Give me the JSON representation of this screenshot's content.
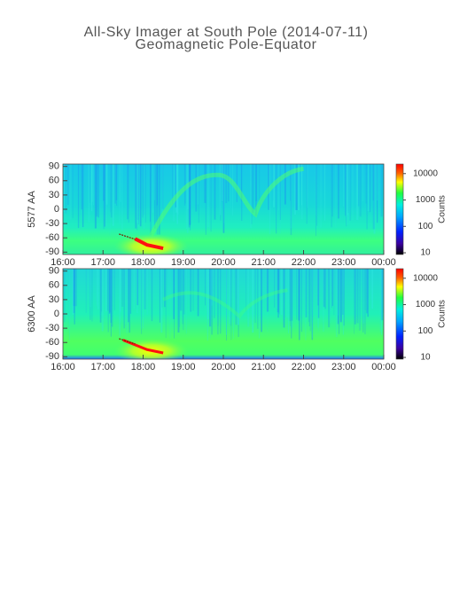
{
  "title": "All-Sky Imager at South Pole (2014-07-11)",
  "subtitle": "Geomagnetic Pole-Equator",
  "chart_data": [
    {
      "type": "keogram",
      "y_label": "5577 AA",
      "xlim": [
        16,
        24
      ],
      "xticks": [
        {
          "value": 16,
          "label": "16:00"
        },
        {
          "value": 17,
          "label": "17:00"
        },
        {
          "value": 18,
          "label": "18:00"
        },
        {
          "value": 19,
          "label": "19:00"
        },
        {
          "value": 20,
          "label": "20:00"
        },
        {
          "value": 21,
          "label": "21:00"
        },
        {
          "value": 22,
          "label": "22:00"
        },
        {
          "value": 23,
          "label": "23:00"
        },
        {
          "value": 24,
          "label": "00:00"
        }
      ],
      "ylim": [
        -95,
        95
      ],
      "yticks": [
        -90,
        -60,
        -30,
        0,
        30,
        60,
        90
      ],
      "colorbar_label": "Counts",
      "clim": [
        8.6,
        23000
      ],
      "log_color": true,
      "cticks": [
        10,
        100,
        1000,
        10000
      ]
    },
    {
      "type": "keogram",
      "y_label": "6300 AA",
      "xlim": [
        16,
        24
      ],
      "xticks": [
        {
          "value": 16,
          "label": "16:00"
        },
        {
          "value": 17,
          "label": "17:00"
        },
        {
          "value": 18,
          "label": "18:00"
        },
        {
          "value": 19,
          "label": "19:00"
        },
        {
          "value": 20,
          "label": "20:00"
        },
        {
          "value": 21,
          "label": "21:00"
        },
        {
          "value": 22,
          "label": "22:00"
        },
        {
          "value": 23,
          "label": "23:00"
        },
        {
          "value": 24,
          "label": "00:00"
        }
      ],
      "ylim": [
        -95,
        95
      ],
      "yticks": [
        -90,
        -60,
        -30,
        0,
        30,
        60,
        90
      ],
      "colorbar_label": "Counts",
      "clim": [
        8.6,
        23000
      ],
      "log_color": true,
      "cticks": [
        10,
        100,
        1000,
        10000
      ]
    }
  ]
}
